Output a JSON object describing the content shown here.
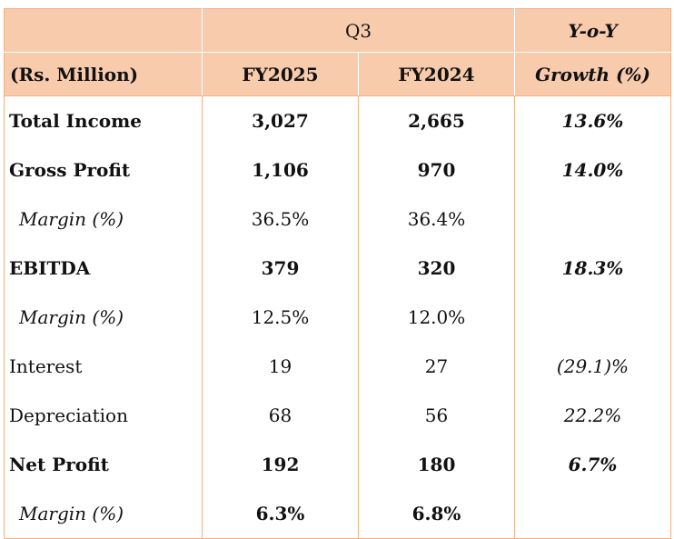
{
  "header": {
    "row1": {
      "period": "Q3",
      "growth_top": "Y-o-Y"
    },
    "row2": {
      "unit": "(Rs. Million)",
      "fy_current": "FY2025",
      "fy_previous": "FY2024",
      "growth_bottom": "Growth (%)"
    }
  },
  "rows": [
    {
      "label": "Total Income",
      "fy2025": "3,027",
      "fy2024": "2,665",
      "growth": "13.6%"
    },
    {
      "label": "Gross Profit",
      "fy2025": "1,106",
      "fy2024": "970",
      "growth": "14.0%"
    },
    {
      "label": "Margin (%)",
      "fy2025": "36.5%",
      "fy2024": "36.4%",
      "growth": ""
    },
    {
      "label": "EBITDA",
      "fy2025": "379",
      "fy2024": "320",
      "growth": "18.3%"
    },
    {
      "label": "Margin (%)",
      "fy2025": "12.5%",
      "fy2024": "12.0%",
      "growth": ""
    },
    {
      "label": "Interest",
      "fy2025": "19",
      "fy2024": "27",
      "growth": "(29.1)%"
    },
    {
      "label": "Depreciation",
      "fy2025": "68",
      "fy2024": "56",
      "growth": "22.2%"
    },
    {
      "label": "Net Profit",
      "fy2025": "192",
      "fy2024": "180",
      "growth": "6.7%"
    },
    {
      "label": "Margin (%)",
      "fy2025": "6.3%",
      "fy2024": "6.8%",
      "growth": ""
    }
  ],
  "colors": {
    "header_bg": "#f8cbad",
    "border": "#f4b183"
  }
}
